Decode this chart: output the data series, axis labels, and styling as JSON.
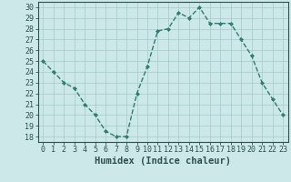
{
  "x": [
    0,
    1,
    2,
    3,
    4,
    5,
    6,
    7,
    8,
    9,
    10,
    11,
    12,
    13,
    14,
    15,
    16,
    17,
    18,
    19,
    20,
    21,
    22,
    23
  ],
  "y": [
    25,
    24,
    23,
    22.5,
    21,
    20,
    18.5,
    18,
    18,
    22,
    24.5,
    27.8,
    28,
    29.5,
    29,
    30,
    28.5,
    28.5,
    28.5,
    27,
    25.5,
    23,
    21.5,
    20
  ],
  "line_color": "#2e7d6e",
  "marker": "D",
  "marker_size": 2,
  "bg_color": "#cce8e8",
  "grid_color": "#aacece",
  "xlabel": "Humidex (Indice chaleur)",
  "xlabel_fontsize": 7.5,
  "ylabel_ticks": [
    18,
    19,
    20,
    21,
    22,
    23,
    24,
    25,
    26,
    27,
    28,
    29,
    30
  ],
  "xtick_labels": [
    "0",
    "1",
    "2",
    "3",
    "4",
    "5",
    "6",
    "7",
    "8",
    "9",
    "10",
    "11",
    "12",
    "13",
    "14",
    "15",
    "16",
    "17",
    "18",
    "19",
    "20",
    "21",
    "22",
    "23"
  ],
  "ylim": [
    17.5,
    30.5
  ],
  "xlim": [
    -0.5,
    23.5
  ],
  "tick_fontsize": 6,
  "spine_color": "#2e5050",
  "linewidth": 1.0
}
